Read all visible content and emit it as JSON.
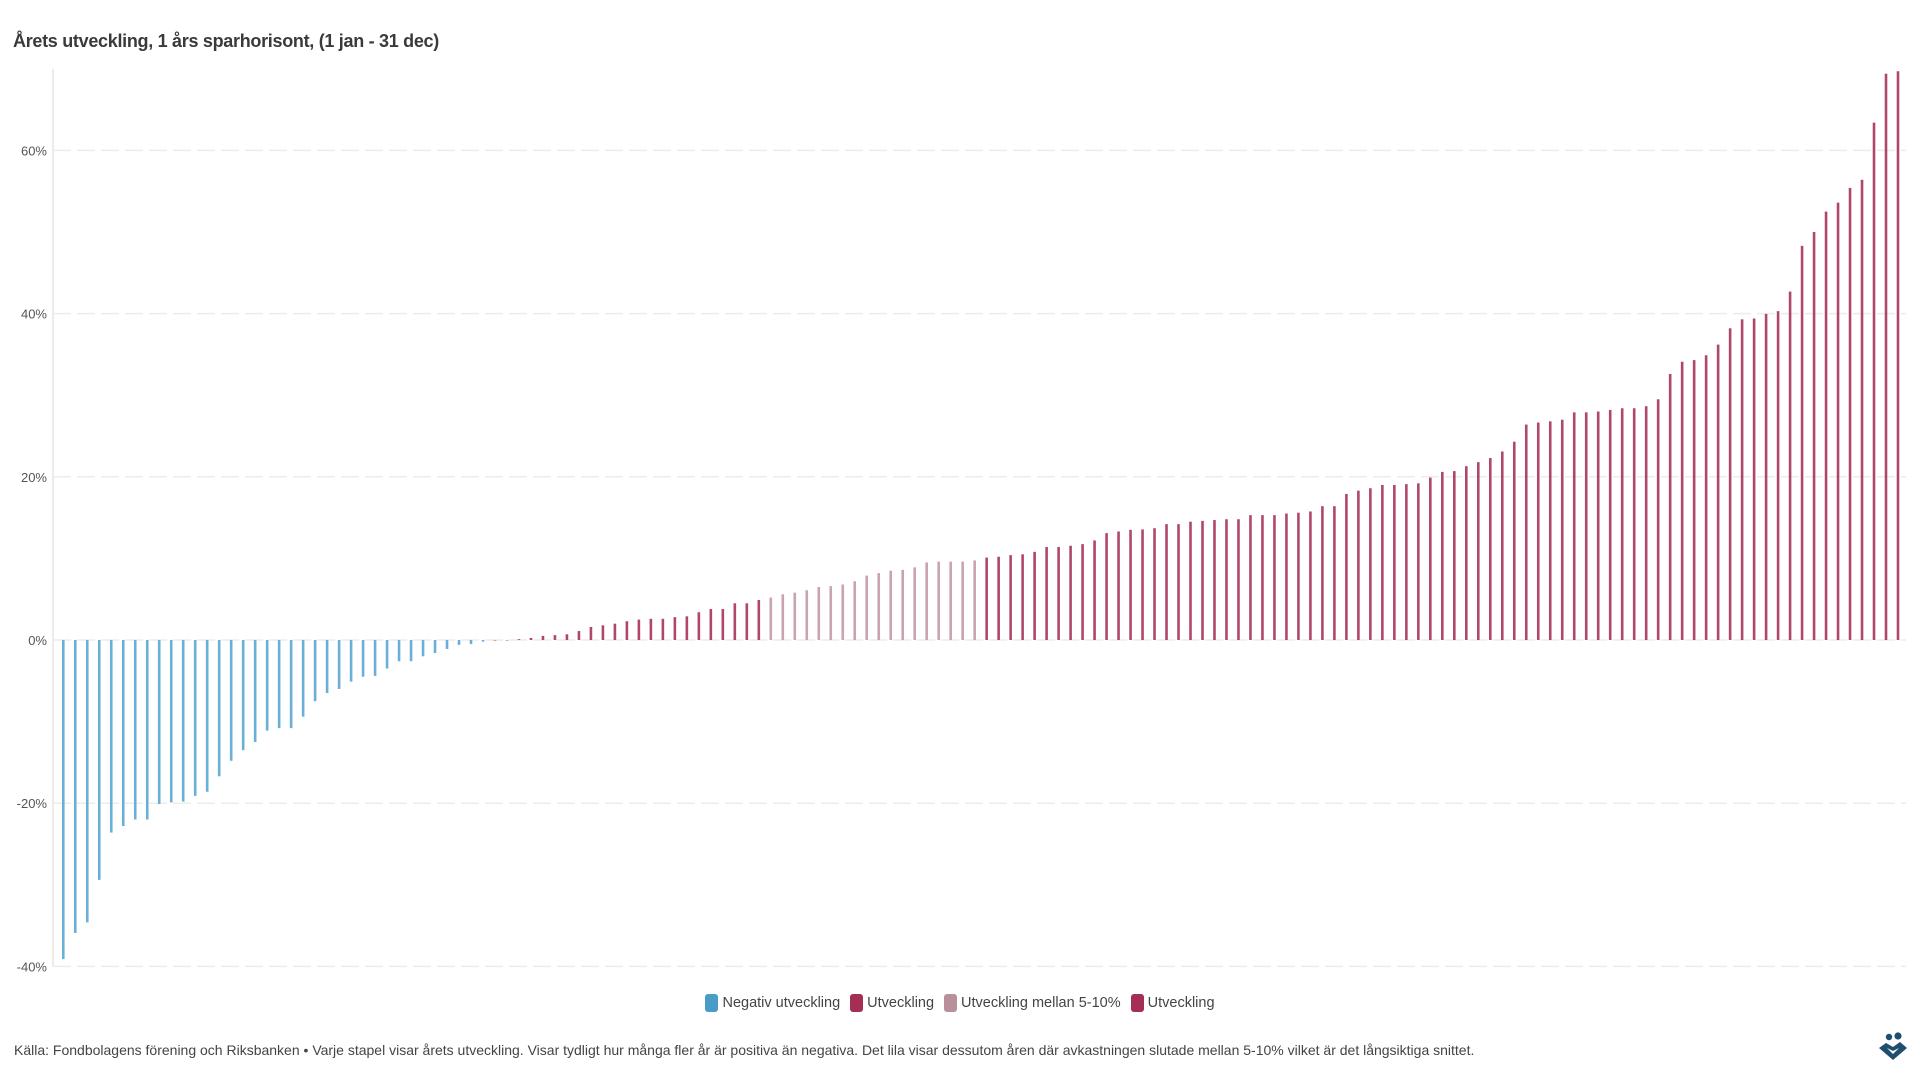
{
  "chart_data": {
    "type": "bar",
    "title": "Årets utveckling, 1 års sparhorisont, (1 jan - 31 dec)",
    "xlabel": "",
    "ylabel": "",
    "ylim": [
      -40,
      70
    ],
    "yticks": [
      -40,
      -20,
      0,
      20,
      40,
      60
    ],
    "ytick_labels": [
      "-40%",
      "-20%",
      "0%",
      "20%",
      "40%",
      "60%"
    ],
    "grid": true,
    "legend_position": "bottom-center",
    "colors": {
      "negative": "#6aafd8",
      "positive": "#b0476a",
      "mid": "#c9a3b0"
    },
    "legend": [
      {
        "label": "Negativ utveckling",
        "color": "#4a9cc8"
      },
      {
        "label": "Utveckling",
        "color": "#a52e55"
      },
      {
        "label": "Utveckling mellan 5-10%",
        "color": "#b8909b"
      },
      {
        "label": "Utveckling",
        "color": "#a52e55"
      }
    ],
    "values": [
      -39.1,
      -35.9,
      -34.6,
      -29.4,
      -23.6,
      -22.8,
      -22.0,
      -22.0,
      -20.1,
      -19.9,
      -19.8,
      -19.1,
      -18.6,
      -16.7,
      -14.8,
      -13.5,
      -12.5,
      -11.1,
      -10.8,
      -10.8,
      -9.4,
      -7.5,
      -6.5,
      -6.0,
      -5.1,
      -4.5,
      -4.4,
      -3.5,
      -2.6,
      -2.6,
      -2.0,
      -1.6,
      -1.1,
      -0.6,
      -0.5,
      -0.2,
      0.0,
      0.0,
      0.1,
      0.25,
      0.5,
      0.6,
      0.7,
      1.1,
      1.6,
      1.8,
      2.0,
      2.3,
      2.5,
      2.6,
      2.6,
      2.8,
      2.9,
      3.4,
      3.8,
      3.8,
      4.5,
      4.5,
      4.9,
      5.2,
      5.6,
      5.8,
      6.1,
      6.5,
      6.6,
      6.8,
      7.2,
      7.9,
      8.2,
      8.5,
      8.6,
      8.9,
      9.5,
      9.6,
      9.6,
      9.6,
      9.75,
      10.1,
      10.2,
      10.4,
      10.5,
      10.8,
      11.4,
      11.4,
      11.55,
      11.75,
      12.2,
      13.1,
      13.3,
      13.5,
      13.55,
      13.7,
      14.2,
      14.2,
      14.5,
      14.6,
      14.7,
      14.8,
      14.8,
      15.3,
      15.3,
      15.3,
      15.5,
      15.6,
      15.75,
      16.4,
      16.4,
      17.9,
      18.3,
      18.6,
      19.0,
      19.0,
      19.1,
      19.2,
      19.9,
      20.6,
      20.7,
      21.3,
      21.8,
      22.3,
      23.1,
      24.3,
      26.4,
      26.65,
      26.8,
      27.0,
      27.9,
      27.9,
      28.0,
      28.2,
      28.4,
      28.4,
      28.65,
      29.5,
      32.6,
      34.1,
      34.3,
      34.9,
      36.2,
      38.2,
      39.3,
      39.4,
      39.96,
      40.3,
      42.7,
      48.3,
      50.0,
      52.5,
      53.6,
      55.4,
      56.4,
      63.4,
      69.4,
      69.7
    ]
  },
  "footer": "Källa: Fondbolagens förening och Riksbanken • Varje stapel visar årets utveckling. Visar tydligt hur många fler år är positiva än negativa. Det lila visar dessutom åren där avkastningen slutade mellan 5-10% vilket är det långsiktiga snittet."
}
